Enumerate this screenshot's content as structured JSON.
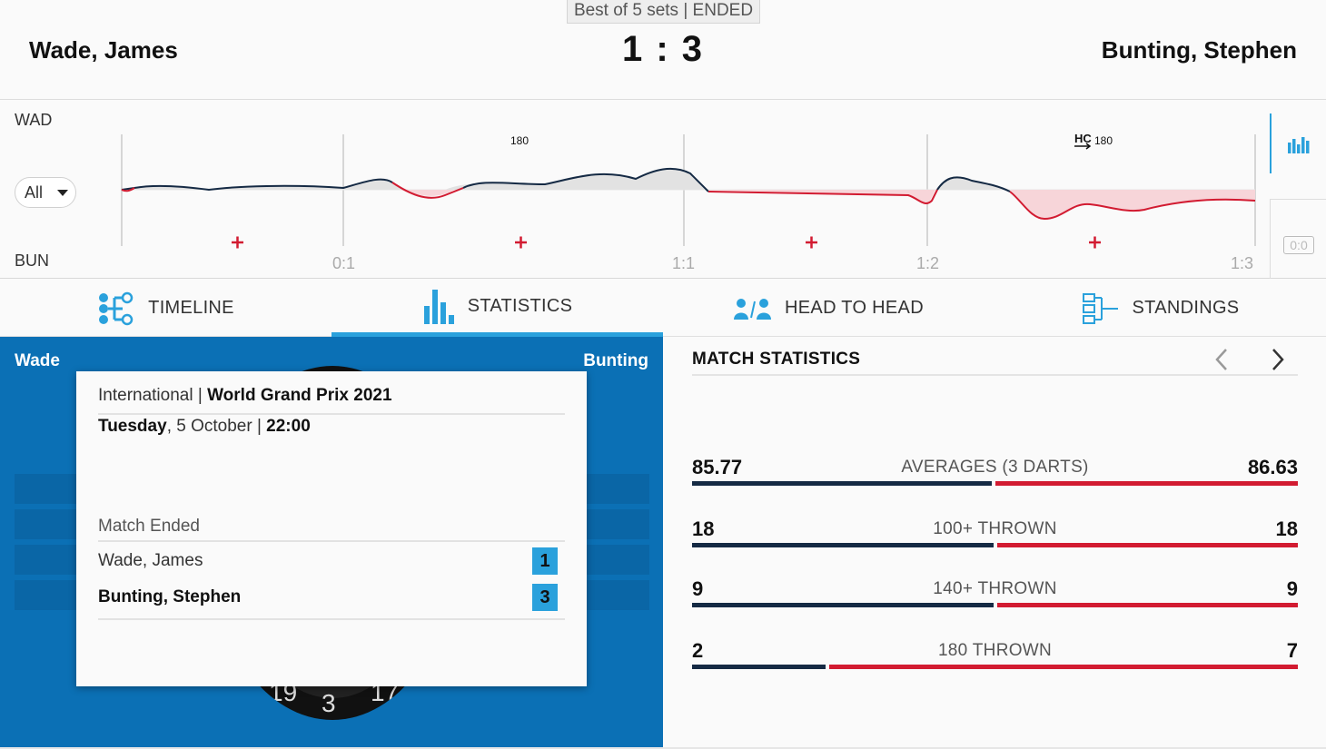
{
  "header": {
    "format_status": "Best of 5 sets | ENDED",
    "player_home": "Wade, James",
    "player_away": "Bunting, Stephen",
    "score": "1 : 3"
  },
  "momentum": {
    "home_abbr": "WAD",
    "away_abbr": "BUN",
    "filter_value": "All",
    "set_labels": [
      "0:1",
      "1:1",
      "1:2",
      "1:3"
    ],
    "markers": [
      "180",
      "HC",
      "180"
    ],
    "zero_badge": "0:0",
    "home_color": "#152a44",
    "away_color": "#d21b31"
  },
  "tabs": [
    {
      "label": "TIMELINE",
      "icon": "timeline-icon"
    },
    {
      "label": "STATISTICS",
      "icon": "bar-chart-icon"
    },
    {
      "label": "HEAD TO HEAD",
      "icon": "users-icon"
    },
    {
      "label": "STANDINGS",
      "icon": "bracket-icon"
    }
  ],
  "active_tab": "STATISTICS",
  "board_panel": {
    "home_short": "Wade",
    "away_short": "Bunting",
    "board_numbers": [
      "19",
      "3",
      "17"
    ]
  },
  "popup": {
    "category": "International",
    "separator": "|",
    "tournament": "World Grand Prix 2021",
    "day": "Tuesday",
    "date": ", 5 October |",
    "time": "22:00",
    "status": "Match Ended",
    "rows": [
      {
        "name": "Wade, James",
        "score": "1"
      },
      {
        "name": "Bunting, Stephen",
        "score": "3"
      }
    ]
  },
  "match_stats": {
    "title": "MATCH STATISTICS",
    "rows": [
      {
        "label": "AVERAGES (3 DARTS)",
        "home": "85.77",
        "away": "86.63",
        "home_value": 85.77,
        "away_value": 86.63
      },
      {
        "label": "100+ THROWN",
        "home": "18",
        "away": "18",
        "home_value": 18,
        "away_value": 18
      },
      {
        "label": "140+ THROWN",
        "home": "9",
        "away": "9",
        "home_value": 9,
        "away_value": 9
      },
      {
        "label": "180 THROWN",
        "home": "2",
        "away": "7",
        "home_value": 2,
        "away_value": 7
      }
    ]
  }
}
